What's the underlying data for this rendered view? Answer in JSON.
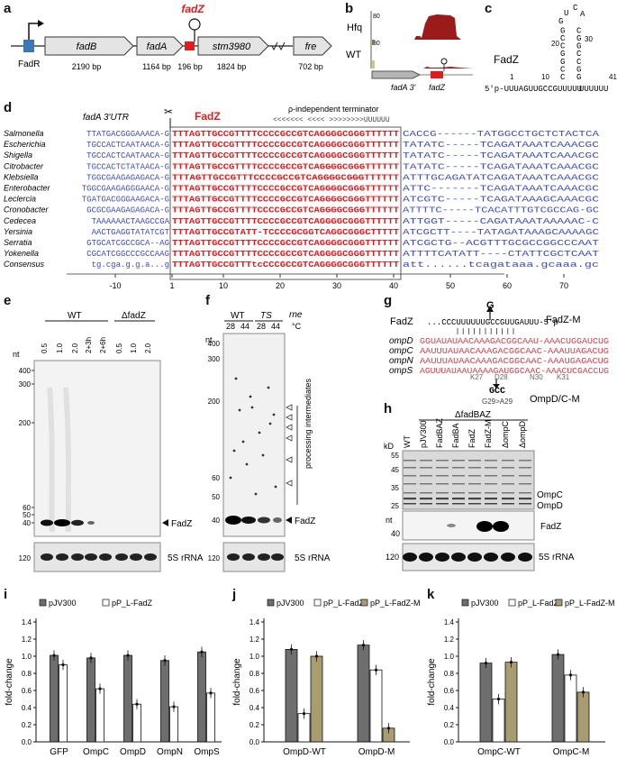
{
  "panel_labels": [
    "a",
    "b",
    "c",
    "d",
    "e",
    "f",
    "g",
    "h",
    "i",
    "j",
    "k"
  ],
  "panel_a": {
    "genes": [
      {
        "name": "fadB",
        "size": "2190 bp"
      },
      {
        "name": "fadA",
        "size": "1164 bp"
      },
      {
        "name": "fadZ",
        "size": "196 bp"
      },
      {
        "name": "stm3980",
        "size": "1824 bp"
      },
      {
        "name": "fre",
        "size": "702 bp"
      }
    ],
    "regulator": "FadR"
  },
  "panel_b": {
    "tracks": [
      {
        "name": "Hfq",
        "scale": "80"
      },
      {
        "name": "WT",
        "scale": "80"
      }
    ],
    "features": [
      "fadA 3'",
      "fadZ"
    ]
  },
  "panel_c": {
    "title": "FadZ",
    "sequence": "5'p-UUUAGUUGCCGUUUUU",
    "tail": "UUUUUU",
    "ticks": [
      "1",
      "10",
      "20",
      "30",
      "41"
    ],
    "hairpin_left": [
      "C",
      "C",
      "G",
      "G",
      "C",
      "C",
      "G"
    ],
    "hairpin_right": [
      "G",
      "G",
      "C",
      "C",
      "G",
      "G",
      "C"
    ],
    "loop": "UCAG"
  },
  "panel_d": {
    "header_left": "fadA 3'UTR",
    "header_mid": "FadZ",
    "terminator": "ρ-independent terminator",
    "terminator_marks": "<<<<<<< <<<<  >>>>>>>>UUUUUU",
    "species": [
      "Salmonella",
      "Escherichia",
      "Shigella",
      "Citrobacter",
      "Klebsiella",
      "Enterobacter",
      "Leclercia",
      "Cronobacter",
      "Cedecea",
      "Yersinia",
      "Serratia",
      "Yokenella",
      "Consensus"
    ],
    "pre": [
      "TTATGACGGGAAACA-G",
      "TGCCACTCAATAACA-G",
      "TGCCACTCAATAACA-G",
      "TGCCACTCTATAACA-G",
      "TGGCGAAGAGAGACA-G",
      "TGGCGAAGAGGGAACA-G",
      "TGATGACGGGAAGACA-G",
      "GCGCGAAGAGAGACA-G",
      "TAAAAAACTAAGCCGA",
      "AACTGAGGTATATCGT",
      "GTGCATCGCCGCA--AG",
      "CGCATCGGCCCGCCAAG",
      "tg.cga.g.g.a...g"
    ],
    "core": [
      "TTTAGTTGCCGTTTTCCCCGCCGTCAGGGGCGGGTTTTTT",
      "TTTAGTTGCCGTTTTCCCCGCCGTCAGGGGCGGGTTTTTT",
      "TTTAGTTGCCGTTTTCCCCGCCGTCAGGGGCGGGTTTTTT",
      "TTTAGTTGCCGTTTTCCCCGCCGTCAGGGGCGGGTTTTTT",
      "TTTAGTTGCCGTTTCCCCGCCGTCAGGGGCGGGTTTTTT",
      "TTTAGTTGCCGTTTTCCCCGCCGTCAGGGGCGGGTTTTTT",
      "TTTAGTTGCCGTTTTCCCCGCCGTCAGGGGCGGGTTTTTT",
      "TTTAGTTGCCGTTTTCCCCGCCGTCAGGGGCGGGTTTTTT",
      "TTTAGTTGCCGTTTTCCCCGCCGTCAGGGGCGGGTTTTTT",
      "TTTAGTTGCCGTATT-TCCCCGCGGTCAGGCGGGCTTTTT",
      "TTTAGTTGCCGTTTTCCCCGCCGTCAGGGGCGGGTTTTTT",
      "TTTAGTTGCCGTTTTCCCCGCCGTCAGGGGCGGGTTTTTT",
      "TTTAGTTGCCGTTTtcCCCGCCGTCAGGGGCGGGTTTTTT"
    ],
    "post": [
      "CACCG------TATGGCCTGCTCTACTCA",
      "TATATC-----TCAGATAAATCAAACGC",
      "TATATC-----TCAGATAAATCAAACGC",
      "TATATC-----TCAGATAAATCAAACGC",
      "ATTTGCAGATATCAGATAAATCAAACGC",
      "ATTC-------TCAGATAAATCAAACGC",
      "ATCGTC-----TCAGATAAAGCAAACGC",
      "ATTTTC-----TCACATTTGTCGCCAG-GC",
      "ATTGGT-----CAGATAAATAAAAAC-C",
      "ATCGCTT----TATAGATAAAGCAAAAGC",
      "ATCGCTG--ACGTTTGCGCCGGCCCAAT",
      "ATTTTCATATT----CTATTCGCTCAAT",
      "att......tcagataaa.gcaaa.gc"
    ],
    "ticks": [
      "-10",
      "1",
      "10",
      "20",
      "30",
      "40",
      "50",
      "60",
      "70"
    ]
  },
  "panel_e": {
    "groups": [
      "WT",
      "ΔfadZ"
    ],
    "lanes": [
      "0.5",
      "1.0",
      "2.0",
      "2+3h",
      "2+6h",
      "0.5",
      "1.0",
      "2.0"
    ],
    "unit": "nt",
    "markers": [
      "400",
      "300",
      "200",
      "60",
      "50",
      "40",
      "120"
    ],
    "band": "FadZ",
    "loading": "5S rRNA"
  },
  "panel_f": {
    "groups": [
      "WT",
      "TS"
    ],
    "gene": "rne",
    "temps": [
      "28",
      "44",
      "28",
      "44"
    ],
    "temp_unit": "°C",
    "unit": "nt",
    "markers": [
      "400",
      "300",
      "200",
      "60",
      "50",
      "40",
      "120"
    ],
    "band": "FadZ",
    "loading": "5S rRNA",
    "note": "processing intermediates"
  },
  "panel_g": {
    "top_label": "FadZ",
    "fadz_seq": "...CCCUUUUUUGCCGUUGAUUU-5'p",
    "mut_base": "G",
    "mut_label": "FadZ-M",
    "targets": [
      {
        "name": "ompD",
        "seq": "GGUAUAUAACAAAGACGGCAAU-AAACUGGAUCUG"
      },
      {
        "name": "ompC",
        "seq": "AAUUUAUAACAAAGACGGCAAC-AAAUUAGACUG"
      },
      {
        "name": "ompN",
        "seq": "AAUUUAUAACAAAGACGGCAAC-AAAUGAGACUG"
      },
      {
        "name": "ompS",
        "seq": "AGUUUAUAAUAAAAGAUGGCAAC-AAACUCGACCUG"
      }
    ],
    "aa": [
      "K27",
      "D28",
      "N30",
      "K31"
    ],
    "mut2": "GCC",
    "mut2_sub": "G29>A29",
    "mut2_label": "OmpD/C-M"
  },
  "panel_h": {
    "strain": "ΔfadBAZ",
    "lanes": [
      "WT",
      "pJV300",
      "FadBAZ",
      "FadBA",
      "FadZ",
      "FadZ-M",
      "ΔompC",
      "ΔompD"
    ],
    "kd_unit": "kD",
    "kd_markers": [
      "55",
      "45",
      "35",
      "25"
    ],
    "nt_unit": "nt",
    "nt_markers": [
      "40",
      "120"
    ],
    "bands": [
      "OmpC",
      "OmpD",
      "FadZ",
      "5S rRNA"
    ]
  },
  "chart_data": [
    {
      "type": "bar",
      "panel": "i",
      "ylabel": "fold-change",
      "ylim": [
        0,
        1.4
      ],
      "yticks": [
        "0.0",
        "0.2",
        "0.4",
        "0.6",
        "0.8",
        "1.0",
        "1.2",
        "1.4"
      ],
      "categories": [
        "GFP",
        "OmpC",
        "OmpD",
        "OmpN",
        "OmpS"
      ],
      "series": [
        {
          "name": "pJV300",
          "color": "#6e6e6e",
          "values": [
            1.01,
            0.98,
            1.01,
            0.95,
            1.05
          ]
        },
        {
          "name": "pP_L-FadZ",
          "color": "#ffffff",
          "values": [
            0.9,
            0.62,
            0.44,
            0.41,
            0.57
          ]
        }
      ]
    },
    {
      "type": "bar",
      "panel": "j",
      "ylabel": "fold-change",
      "ylim": [
        0,
        1.4
      ],
      "yticks": [
        "0.0",
        "0.2",
        "0.4",
        "0.6",
        "0.8",
        "1.0",
        "1.2",
        "1.4"
      ],
      "categories": [
        "OmpD-WT",
        "OmpD-M"
      ],
      "series": [
        {
          "name": "pJV300",
          "color": "#6e6e6e",
          "values": [
            1.08,
            1.13
          ]
        },
        {
          "name": "pP_L-FadZ",
          "color": "#ffffff",
          "values": [
            0.33,
            0.84
          ]
        },
        {
          "name": "pP_L-FadZ-M",
          "color": "#a79c72",
          "values": [
            1.0,
            0.16
          ]
        }
      ]
    },
    {
      "type": "bar",
      "panel": "k",
      "ylabel": "fold-change",
      "ylim": [
        0,
        1.4
      ],
      "yticks": [
        "0.0",
        "0.2",
        "0.4",
        "0.6",
        "0.8",
        "1.0",
        "1.2",
        "1.4"
      ],
      "categories": [
        "OmpC-WT",
        "OmpC-M"
      ],
      "series": [
        {
          "name": "pJV300",
          "color": "#6e6e6e",
          "values": [
            0.92,
            1.02
          ]
        },
        {
          "name": "pP_L-FadZ",
          "color": "#ffffff",
          "values": [
            0.5,
            0.78
          ]
        },
        {
          "name": "pP_L-FadZ-M",
          "color": "#a79c72",
          "values": [
            0.93,
            0.58
          ]
        }
      ]
    }
  ]
}
